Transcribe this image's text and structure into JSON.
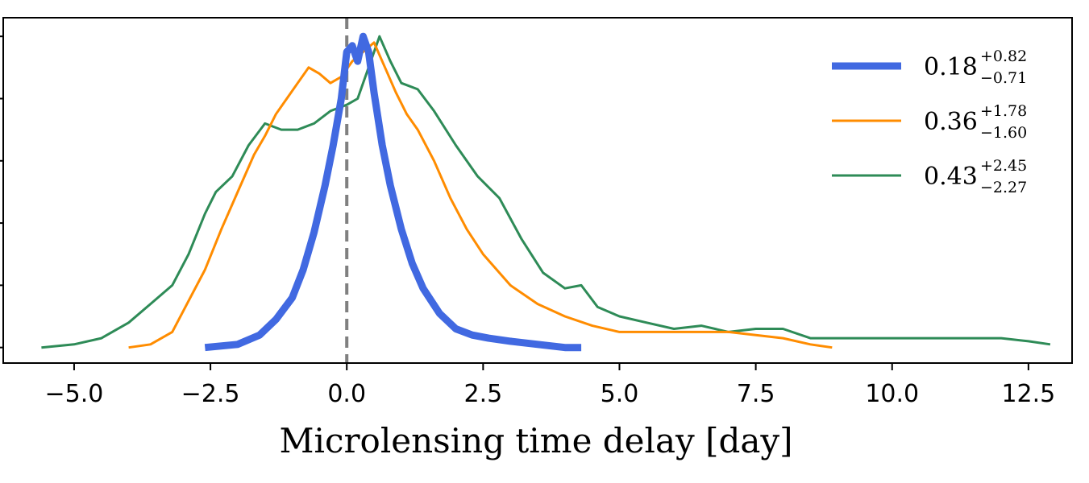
{
  "chart_data": {
    "type": "line",
    "xlabel": "Microlensing time delay  [day]",
    "ylabel": "",
    "xlim": [
      -6.3,
      13.3
    ],
    "ylim": [
      -0.05,
      1.06
    ],
    "x_ticks": [
      -5.0,
      -2.5,
      0.0,
      2.5,
      5.0,
      7.5,
      10.0,
      12.5
    ],
    "x_tick_labels": [
      "−5.0",
      "−2.5",
      "0.0",
      "2.5",
      "5.0",
      "7.5",
      "10.0",
      "12.5"
    ],
    "y_ticks": [
      0.0,
      0.2,
      0.4,
      0.6,
      0.8,
      1.0
    ],
    "y_tick_labels_visible": false,
    "grid": false,
    "legend_position": "top-right",
    "reference_line": {
      "x": 0.0,
      "style": "dashed",
      "color": "#808080"
    },
    "series": [
      {
        "name": "0.18",
        "median": "0.18",
        "plus": "+0.82",
        "minus": "−0.71",
        "color": "#4169e1",
        "thick": true,
        "x": [
          -2.6,
          -2.0,
          -1.6,
          -1.3,
          -1.0,
          -0.8,
          -0.6,
          -0.4,
          -0.25,
          -0.1,
          0.0,
          0.1,
          0.2,
          0.3,
          0.4,
          0.5,
          0.65,
          0.8,
          1.0,
          1.2,
          1.4,
          1.7,
          2.0,
          2.3,
          2.6,
          3.0,
          3.5,
          4.0,
          4.3
        ],
        "y": [
          0.0,
          0.01,
          0.04,
          0.09,
          0.16,
          0.25,
          0.37,
          0.52,
          0.65,
          0.8,
          0.95,
          0.97,
          0.92,
          1.0,
          0.95,
          0.82,
          0.65,
          0.52,
          0.38,
          0.27,
          0.19,
          0.11,
          0.06,
          0.04,
          0.03,
          0.02,
          0.01,
          0.0,
          0.0
        ]
      },
      {
        "name": "0.36",
        "median": "0.36",
        "plus": "+1.78",
        "minus": "−1.60",
        "color": "#ff8c00",
        "thick": false,
        "x": [
          -4.0,
          -3.6,
          -3.2,
          -2.9,
          -2.6,
          -2.3,
          -2.0,
          -1.7,
          -1.5,
          -1.3,
          -1.1,
          -0.9,
          -0.7,
          -0.5,
          -0.3,
          -0.1,
          0.1,
          0.3,
          0.5,
          0.7,
          0.9,
          1.1,
          1.3,
          1.6,
          1.9,
          2.2,
          2.5,
          3.0,
          3.5,
          4.0,
          4.5,
          5.0,
          5.5,
          6.0,
          6.5,
          7.0,
          7.5,
          8.0,
          8.5,
          8.9
        ],
        "y": [
          0.0,
          0.01,
          0.05,
          0.15,
          0.25,
          0.38,
          0.5,
          0.62,
          0.68,
          0.75,
          0.8,
          0.85,
          0.9,
          0.88,
          0.85,
          0.87,
          0.92,
          0.95,
          0.98,
          0.9,
          0.82,
          0.75,
          0.7,
          0.6,
          0.48,
          0.38,
          0.3,
          0.2,
          0.14,
          0.1,
          0.07,
          0.05,
          0.05,
          0.05,
          0.05,
          0.05,
          0.04,
          0.03,
          0.01,
          0.0
        ]
      },
      {
        "name": "0.43",
        "median": "0.43",
        "plus": "+2.45",
        "minus": "−2.27",
        "color": "#2e8b57",
        "thick": false,
        "x": [
          -5.6,
          -5.0,
          -4.5,
          -4.0,
          -3.6,
          -3.2,
          -2.9,
          -2.6,
          -2.4,
          -2.1,
          -1.8,
          -1.5,
          -1.2,
          -0.9,
          -0.6,
          -0.3,
          0.0,
          0.2,
          0.4,
          0.6,
          0.8,
          1.0,
          1.3,
          1.6,
          2.0,
          2.4,
          2.8,
          3.2,
          3.6,
          4.0,
          4.3,
          4.6,
          5.0,
          5.5,
          6.0,
          6.5,
          7.0,
          7.5,
          8.0,
          8.5,
          9.0,
          10.0,
          11.0,
          12.0,
          12.5,
          12.9
        ],
        "y": [
          0.0,
          0.01,
          0.03,
          0.08,
          0.14,
          0.2,
          0.3,
          0.43,
          0.5,
          0.55,
          0.65,
          0.72,
          0.7,
          0.7,
          0.72,
          0.76,
          0.78,
          0.8,
          0.9,
          1.0,
          0.92,
          0.85,
          0.83,
          0.76,
          0.65,
          0.55,
          0.48,
          0.35,
          0.24,
          0.19,
          0.2,
          0.13,
          0.1,
          0.08,
          0.06,
          0.07,
          0.05,
          0.06,
          0.06,
          0.03,
          0.03,
          0.03,
          0.03,
          0.03,
          0.02,
          0.01
        ]
      }
    ]
  }
}
